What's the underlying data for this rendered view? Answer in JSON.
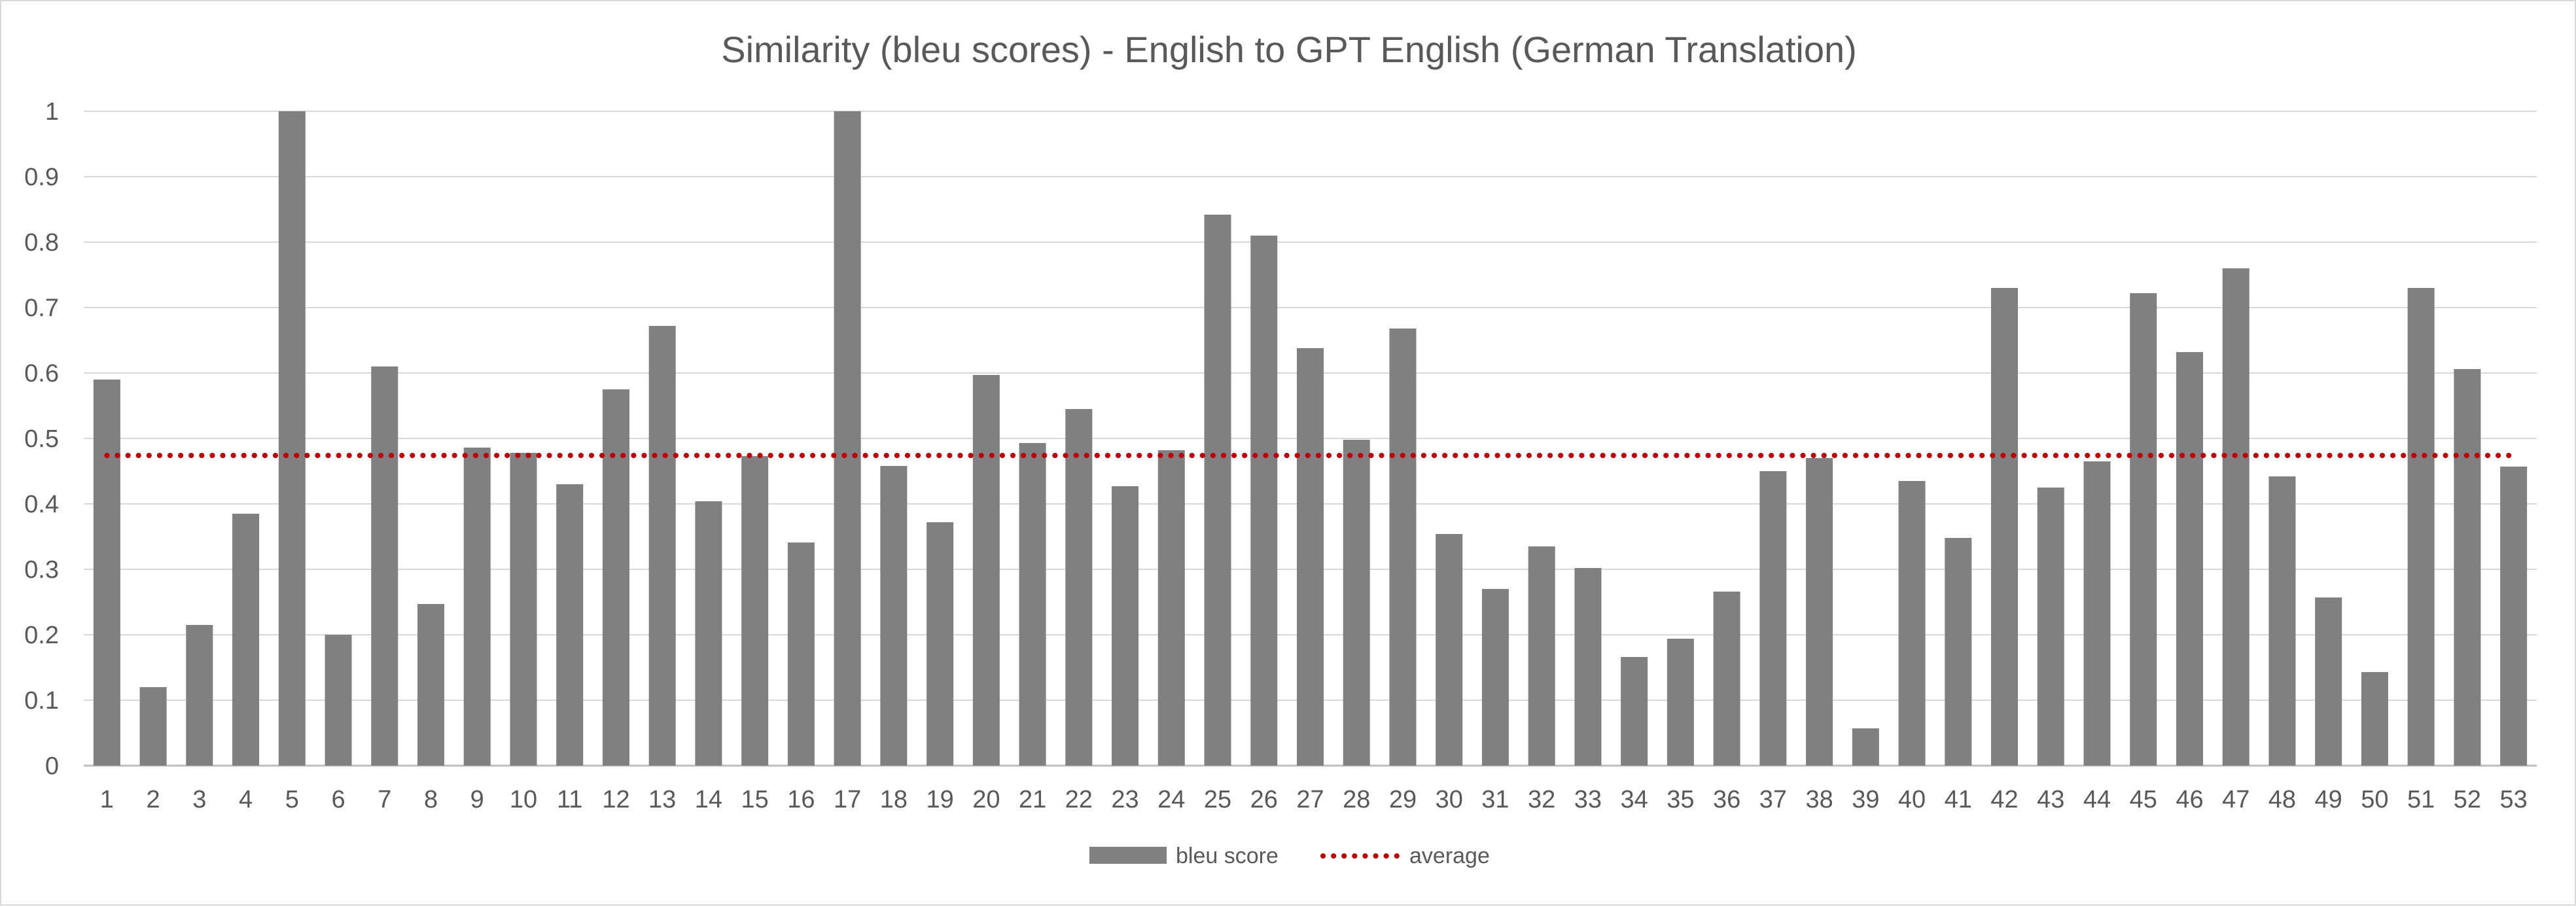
{
  "chart_data": {
    "type": "bar",
    "title": "Similarity (bleu scores) - English to GPT English (German Translation)",
    "xlabel": "",
    "ylabel": "",
    "ylim": [
      0,
      1
    ],
    "yticks": [
      "0",
      "0.1",
      "0.2",
      "0.3",
      "0.4",
      "0.5",
      "0.6",
      "0.7",
      "0.8",
      "0.9",
      "1"
    ],
    "grid": true,
    "legend_position": "bottom",
    "categories": [
      "1",
      "2",
      "3",
      "4",
      "5",
      "6",
      "7",
      "8",
      "9",
      "10",
      "11",
      "12",
      "13",
      "14",
      "15",
      "16",
      "17",
      "18",
      "19",
      "20",
      "21",
      "22",
      "23",
      "24",
      "25",
      "26",
      "27",
      "28",
      "29",
      "30",
      "31",
      "32",
      "33",
      "34",
      "35",
      "36",
      "37",
      "38",
      "39",
      "40",
      "41",
      "42",
      "43",
      "44",
      "45",
      "46",
      "47",
      "48",
      "49",
      "50",
      "51",
      "52",
      "53"
    ],
    "series": [
      {
        "name": "bleu score",
        "type": "bar",
        "color": "#808080",
        "values": [
          0.59,
          0.12,
          0.215,
          0.385,
          1.0,
          0.2,
          0.61,
          0.247,
          0.486,
          0.478,
          0.43,
          0.575,
          0.672,
          0.404,
          0.473,
          0.341,
          1.0,
          0.458,
          0.372,
          0.597,
          0.493,
          0.545,
          0.427,
          0.482,
          0.842,
          0.81,
          0.638,
          0.498,
          0.668,
          0.354,
          0.27,
          0.335,
          0.302,
          0.166,
          0.194,
          0.266,
          0.45,
          0.47,
          0.057,
          0.435,
          0.348,
          0.73,
          0.425,
          0.465,
          0.722,
          0.632,
          0.76,
          0.442,
          0.257,
          0.143,
          0.73,
          0.606,
          0.457
        ]
      },
      {
        "name": "average",
        "type": "line",
        "style": "dotted",
        "color": "#c00000",
        "value": 0.474
      }
    ]
  }
}
